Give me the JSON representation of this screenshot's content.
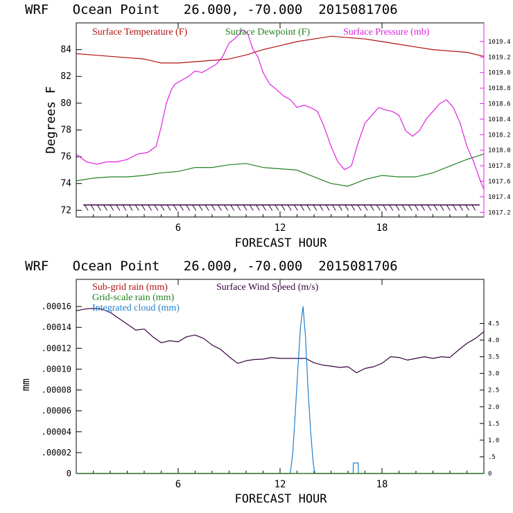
{
  "chart_data": [
    {
      "type": "line",
      "title": "WRF   Ocean Point   26.000, -70.000  2015081706",
      "xlabel": "FORECAST HOUR",
      "ylabel": "Degrees F",
      "xlim": [
        0,
        24
      ],
      "ylim": [
        71.5,
        86
      ],
      "xticks": [
        6,
        12,
        18
      ],
      "xtick_labels": [
        "6",
        "12",
        "18"
      ],
      "yticks": [
        72,
        74,
        76,
        78,
        80,
        82,
        84
      ],
      "ytick_labels": [
        "72",
        "74",
        "76",
        "78",
        "80",
        "82",
        "84"
      ],
      "y2lim": [
        1017.14,
        1019.64
      ],
      "y2ticks": [
        1017.2,
        1017.4,
        1017.6,
        1017.8,
        1018.0,
        1018.2,
        1018.4,
        1018.6,
        1018.8,
        1019.0,
        1019.2,
        1019.4
      ],
      "y2tick_labels": [
        "1017.2",
        "1017.4",
        "1017.6",
        "1017.8",
        "1018.0",
        "1018.2",
        "1018.4",
        "1018.6",
        "1018.8",
        "1019.0",
        "1019.2",
        "1019.4"
      ],
      "legend": [
        "Surface Temperature (F)",
        "Surface Dewpoint (F)",
        "Surface Pressure (mb)"
      ],
      "series": [
        {
          "name": "Surface Temperature (F)",
          "color": "#b01010",
          "axis": "y",
          "x": [
            0,
            1,
            2,
            3,
            4,
            5,
            6,
            7,
            8,
            9,
            10,
            11,
            12,
            13,
            14,
            15,
            16,
            17,
            18,
            19,
            20,
            21,
            22,
            23,
            24
          ],
          "y": [
            83.7,
            83.6,
            83.5,
            83.4,
            83.3,
            83.0,
            83.0,
            83.1,
            83.2,
            83.3,
            83.6,
            84.0,
            84.3,
            84.6,
            84.8,
            85.0,
            84.9,
            84.8,
            84.6,
            84.4,
            84.2,
            84.0,
            83.9,
            83.8,
            83.5
          ]
        },
        {
          "name": "Surface Dewpoint (F)",
          "color": "#208020",
          "axis": "y",
          "x": [
            0,
            1,
            2,
            3,
            4,
            5,
            6,
            7,
            8,
            9,
            10,
            11,
            12,
            13,
            14,
            15,
            16,
            17,
            18,
            19,
            20,
            21,
            22,
            23,
            24
          ],
          "y": [
            74.2,
            74.4,
            74.5,
            74.5,
            74.6,
            74.8,
            74.9,
            75.2,
            75.2,
            75.4,
            75.5,
            75.2,
            75.1,
            75.0,
            74.5,
            74.0,
            73.8,
            74.3,
            74.6,
            74.5,
            74.5,
            74.8,
            75.3,
            75.8,
            76.2
          ]
        },
        {
          "name": "Surface Pressure (mb)",
          "color": "#e020e0",
          "axis": "y2",
          "x": [
            0,
            0.6,
            1.2,
            1.8,
            2.4,
            3.0,
            3.6,
            4.2,
            4.7,
            5.0,
            5.3,
            5.6,
            5.8,
            6.2,
            6.6,
            7.0,
            7.4,
            7.8,
            8.2,
            8.6,
            9.0,
            9.4,
            9.8,
            10.1,
            10.4,
            10.7,
            11.0,
            11.4,
            11.8,
            12.2,
            12.6,
            13.0,
            13.4,
            13.8,
            14.2,
            14.6,
            15.0,
            15.4,
            15.8,
            16.2,
            16.6,
            17.0,
            17.4,
            17.8,
            18.2,
            18.6,
            19.0,
            19.4,
            19.8,
            20.2,
            20.6,
            21.0,
            21.4,
            21.8,
            22.2,
            22.6,
            23.0,
            23.4,
            23.8,
            24.0
          ],
          "y": [
            1017.95,
            1017.85,
            1017.82,
            1017.85,
            1017.85,
            1017.88,
            1017.95,
            1017.97,
            1018.05,
            1018.3,
            1018.6,
            1018.78,
            1018.85,
            1018.9,
            1018.95,
            1019.02,
            1019.0,
            1019.05,
            1019.1,
            1019.2,
            1019.38,
            1019.45,
            1019.55,
            1019.5,
            1019.3,
            1019.2,
            1019.0,
            1018.85,
            1018.78,
            1018.7,
            1018.65,
            1018.55,
            1018.58,
            1018.55,
            1018.5,
            1018.3,
            1018.05,
            1017.85,
            1017.75,
            1017.8,
            1018.1,
            1018.35,
            1018.45,
            1018.55,
            1018.52,
            1018.5,
            1018.45,
            1018.25,
            1018.18,
            1018.25,
            1018.4,
            1018.5,
            1018.6,
            1018.65,
            1018.55,
            1018.35,
            1018.05,
            1017.85,
            1017.6,
            1017.5
          ]
        }
      ],
      "wind_barbs": {
        "axis_value": 72.4,
        "color": "#380040",
        "count": 62
      }
    },
    {
      "type": "line",
      "title": "WRF   Ocean Point   26.000, -70.000  2015081706",
      "xlabel": "FORECAST HOUR",
      "ylabel": "mm",
      "xlim": [
        0,
        24
      ],
      "ylim": [
        0,
        0.000186
      ],
      "xticks": [
        6,
        12,
        18
      ],
      "xtick_labels": [
        "6",
        "12",
        "18"
      ],
      "yticks": [
        0,
        2e-05,
        4e-05,
        6e-05,
        8e-05,
        0.0001,
        0.00012,
        0.00014,
        0.00016
      ],
      "ytick_labels": [
        "0",
        ".00002",
        ".00004",
        ".00006",
        ".00008",
        ".00010",
        ".00012",
        ".00014",
        ".00016"
      ],
      "y2lim": [
        0,
        5.82
      ],
      "y2ticks": [
        0,
        0.5,
        1.0,
        1.5,
        2.0,
        2.5,
        3.0,
        3.5,
        4.0,
        4.5
      ],
      "y2tick_labels": [
        "0",
        ".5",
        "1.0",
        "1.5",
        "2.0",
        "2.5",
        "3.0",
        "3.5",
        "4.0",
        "4.5"
      ],
      "legend": [
        "Sub-grid rain (mm)",
        "Surface Wind Speed (m/s)",
        "Grid-scale rain (mm)",
        "Integrated cloud (mm)"
      ],
      "series": [
        {
          "name": "Surface Wind Speed (m/s)",
          "color": "#380040",
          "axis": "y2",
          "x": [
            0,
            0.5,
            1.0,
            1.5,
            2.0,
            2.5,
            3.0,
            3.5,
            4.0,
            4.5,
            5.0,
            5.5,
            6.0,
            6.5,
            7.0,
            7.5,
            8.0,
            8.5,
            9.0,
            9.5,
            10.0,
            10.5,
            11.0,
            11.5,
            12.0,
            12.5,
            13.0,
            13.5,
            14.0,
            14.5,
            15.0,
            15.5,
            16.0,
            16.5,
            17.0,
            17.5,
            18.0,
            18.5,
            19.0,
            19.5,
            20.0,
            20.5,
            21.0,
            21.5,
            22.0,
            22.5,
            23.0,
            23.5,
            24.0
          ],
          "y": [
            4.88,
            4.93,
            4.95,
            4.93,
            4.83,
            4.65,
            4.48,
            4.3,
            4.33,
            4.1,
            3.92,
            3.98,
            3.95,
            4.1,
            4.15,
            4.05,
            3.85,
            3.72,
            3.5,
            3.3,
            3.38,
            3.42,
            3.43,
            3.48,
            3.45,
            3.45,
            3.45,
            3.45,
            3.32,
            3.25,
            3.22,
            3.18,
            3.2,
            3.02,
            3.15,
            3.2,
            3.3,
            3.5,
            3.48,
            3.4,
            3.45,
            3.5,
            3.45,
            3.5,
            3.48,
            3.7,
            3.9,
            4.05,
            4.25
          ]
        },
        {
          "name": "Integrated cloud (mm)",
          "color": "#2080d0",
          "axis": "y",
          "step": true,
          "x": [
            0,
            12.6,
            12.75,
            12.9,
            13.05,
            13.2,
            13.35,
            13.5,
            13.65,
            13.8,
            13.95,
            14.05,
            16.3,
            16.31,
            16.6,
            16.61,
            24
          ],
          "y": [
            0,
            0,
            2e-05,
            6e-05,
            0.0001,
            0.00014,
            0.00016,
            0.00013,
            8e-05,
            4e-05,
            1e-05,
            0,
            0,
            1e-05,
            1e-05,
            0,
            0
          ]
        },
        {
          "name": "Sub-grid rain (mm)",
          "color": "#b01010",
          "axis": "y",
          "x": [
            0,
            24
          ],
          "y": [
            0,
            0
          ]
        },
        {
          "name": "Grid-scale rain (mm)",
          "color": "#208020",
          "axis": "y",
          "x": [
            0,
            24
          ],
          "y": [
            0,
            0
          ]
        }
      ]
    }
  ]
}
